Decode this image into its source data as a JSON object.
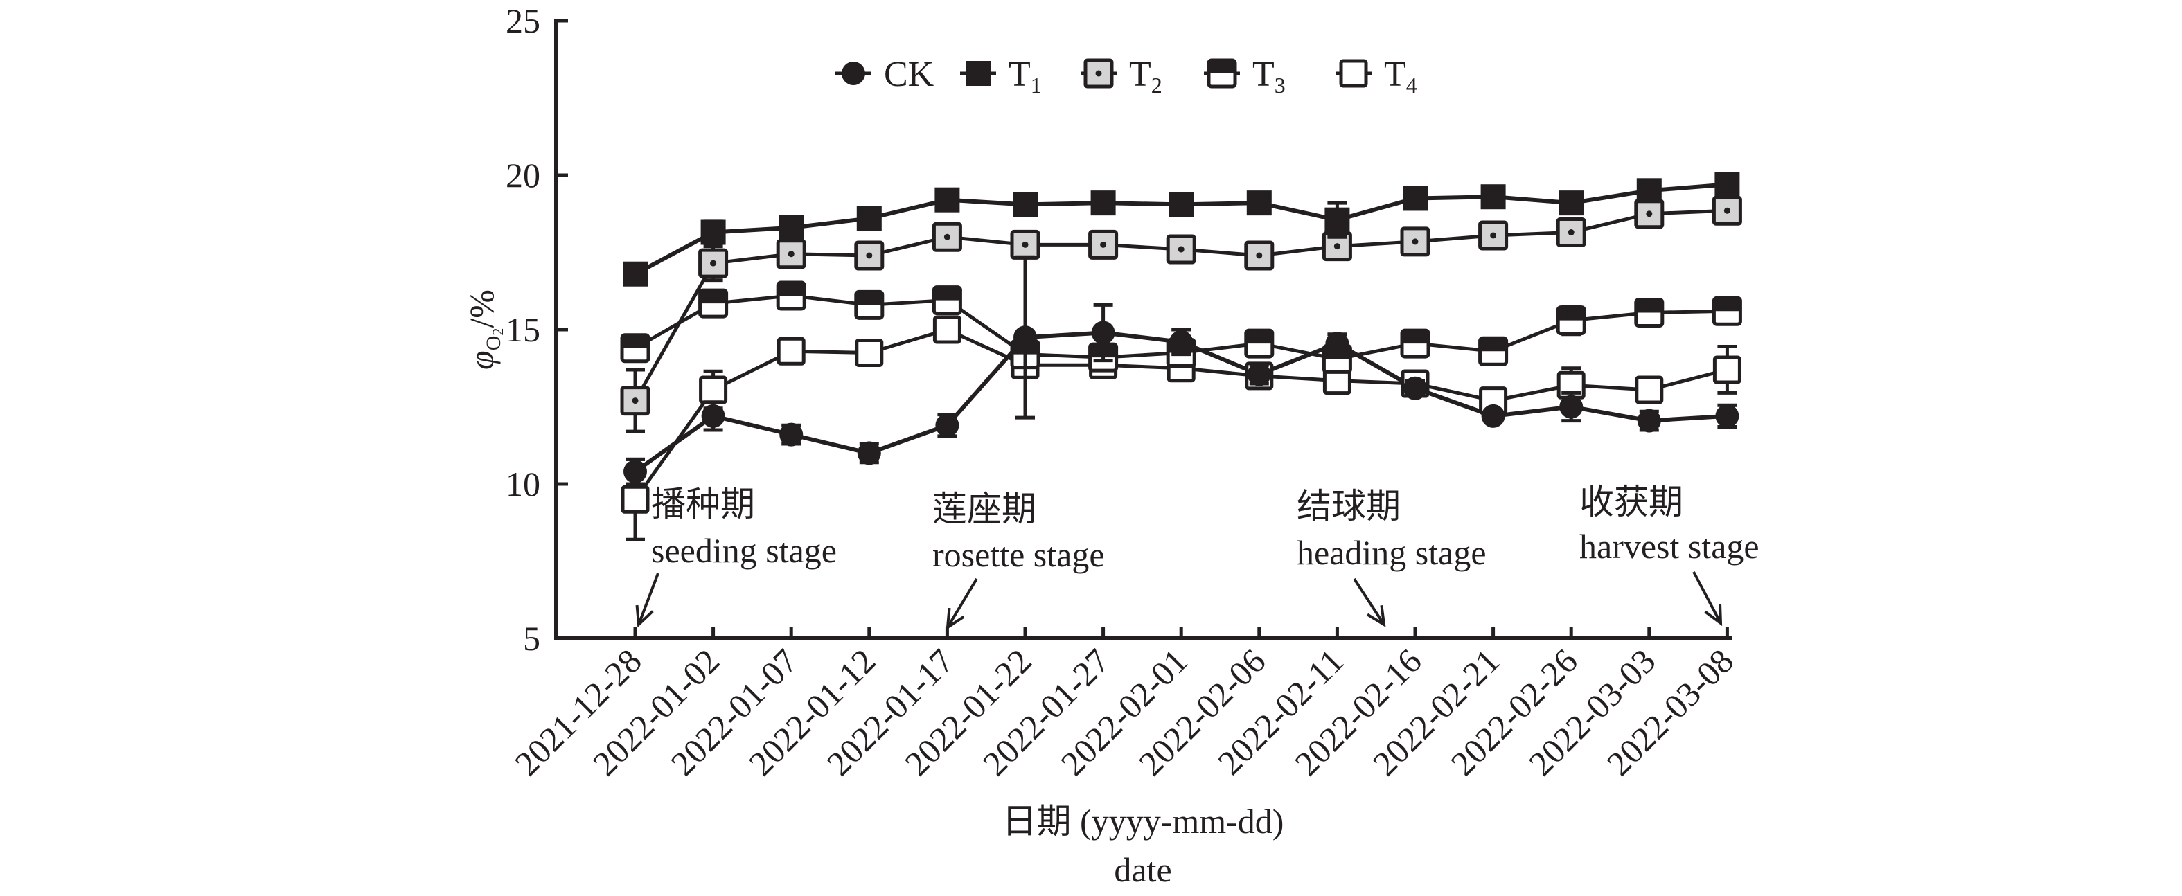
{
  "chart_data": {
    "type": "line",
    "title": "",
    "xlabel": "日期 (yyyy-mm-dd)",
    "xlabel_en": "date",
    "ylabel": {
      "symbol": "φ",
      "subscript": "O",
      "subscript2": "2",
      "unit": "/%"
    },
    "ylim": [
      5,
      25
    ],
    "yticks": [
      "5",
      "10",
      "15",
      "20",
      "25"
    ],
    "grid": false,
    "legend_placement": "top-center",
    "categories": [
      "2021-12-28",
      "2022-01-02",
      "2022-01-07",
      "2022-01-12",
      "2022-01-17",
      "2022-01-22",
      "2022-01-27",
      "2022-02-01",
      "2022-02-06",
      "2022-02-11",
      "2022-02-16",
      "2022-02-21",
      "2022-02-26",
      "2022-03-03",
      "2022-03-08"
    ],
    "series": [
      {
        "name": "CK",
        "sub": "",
        "marker": "circle",
        "values": [
          10.4,
          12.2,
          11.6,
          11.0,
          11.9,
          14.75,
          14.9,
          14.6,
          13.55,
          14.55,
          13.1,
          12.2,
          12.5,
          12.05,
          12.2
        ],
        "errors": [
          0.4,
          0.45,
          0.3,
          0.3,
          0.35,
          2.6,
          0.9,
          0.4,
          0.3,
          0.3,
          0.25,
          0.1,
          0.45,
          0.3,
          0.35
        ]
      },
      {
        "name": "T",
        "sub": "1",
        "marker": "square-filled",
        "values": [
          16.8,
          18.15,
          18.3,
          18.6,
          19.2,
          19.05,
          19.1,
          19.05,
          19.1,
          18.55,
          19.25,
          19.3,
          19.1,
          19.5,
          19.7
        ],
        "errors": [
          0.1,
          0.35,
          0.1,
          0.1,
          0.1,
          0.1,
          0.1,
          0.1,
          0.1,
          0.55,
          0.1,
          0.1,
          0.3,
          0.1,
          0.1
        ]
      },
      {
        "name": "T",
        "sub": "2",
        "marker": "square-grey-dot",
        "values": [
          12.7,
          17.15,
          17.45,
          17.4,
          18.0,
          17.75,
          17.75,
          17.6,
          17.4,
          17.7,
          17.85,
          18.05,
          18.15,
          18.75,
          18.85
        ],
        "errors": [
          1.0,
          0.55,
          0.15,
          0.3,
          0.15,
          0.15,
          0.4,
          0.2,
          0.15,
          0.2,
          0.15,
          0.15,
          0.4,
          0.15,
          0.15
        ]
      },
      {
        "name": "T",
        "sub": "3",
        "marker": "square-half",
        "values": [
          14.4,
          15.85,
          16.1,
          15.8,
          15.95,
          14.2,
          14.1,
          14.25,
          14.55,
          14.05,
          14.55,
          14.3,
          15.3,
          15.55,
          15.6
        ],
        "errors": [
          0.15,
          0.35,
          0.15,
          0.15,
          0.15,
          0.2,
          0.25,
          0.2,
          0.15,
          0.2,
          0.15,
          0.15,
          0.45,
          0.2,
          0.2
        ]
      },
      {
        "name": "T",
        "sub": "4",
        "marker": "square-open",
        "values": [
          9.5,
          13.05,
          14.3,
          14.25,
          15.0,
          13.85,
          13.85,
          13.75,
          13.5,
          13.35,
          13.25,
          12.7,
          13.2,
          13.05,
          13.7
        ],
        "errors": [
          1.3,
          0.6,
          0.15,
          0.3,
          0.35,
          0.2,
          0.35,
          0.15,
          0.25,
          0.15,
          0.15,
          0.15,
          0.55,
          0.2,
          0.75
        ]
      }
    ],
    "annotations": [
      {
        "cn": "播种期",
        "en": "seeding stage",
        "target": "2021-12-28"
      },
      {
        "cn": "莲座期",
        "en": "rosette stage",
        "target": "2022-01-17"
      },
      {
        "cn": "结球期",
        "en": "heading stage",
        "target": "2022-02-13"
      },
      {
        "cn": "收获期",
        "en": "harvest stage",
        "target": "2022-03-08"
      }
    ],
    "colors": {
      "line": "#231f20",
      "t2_fill": "#d4d4d4",
      "background": "#ffffff"
    }
  }
}
